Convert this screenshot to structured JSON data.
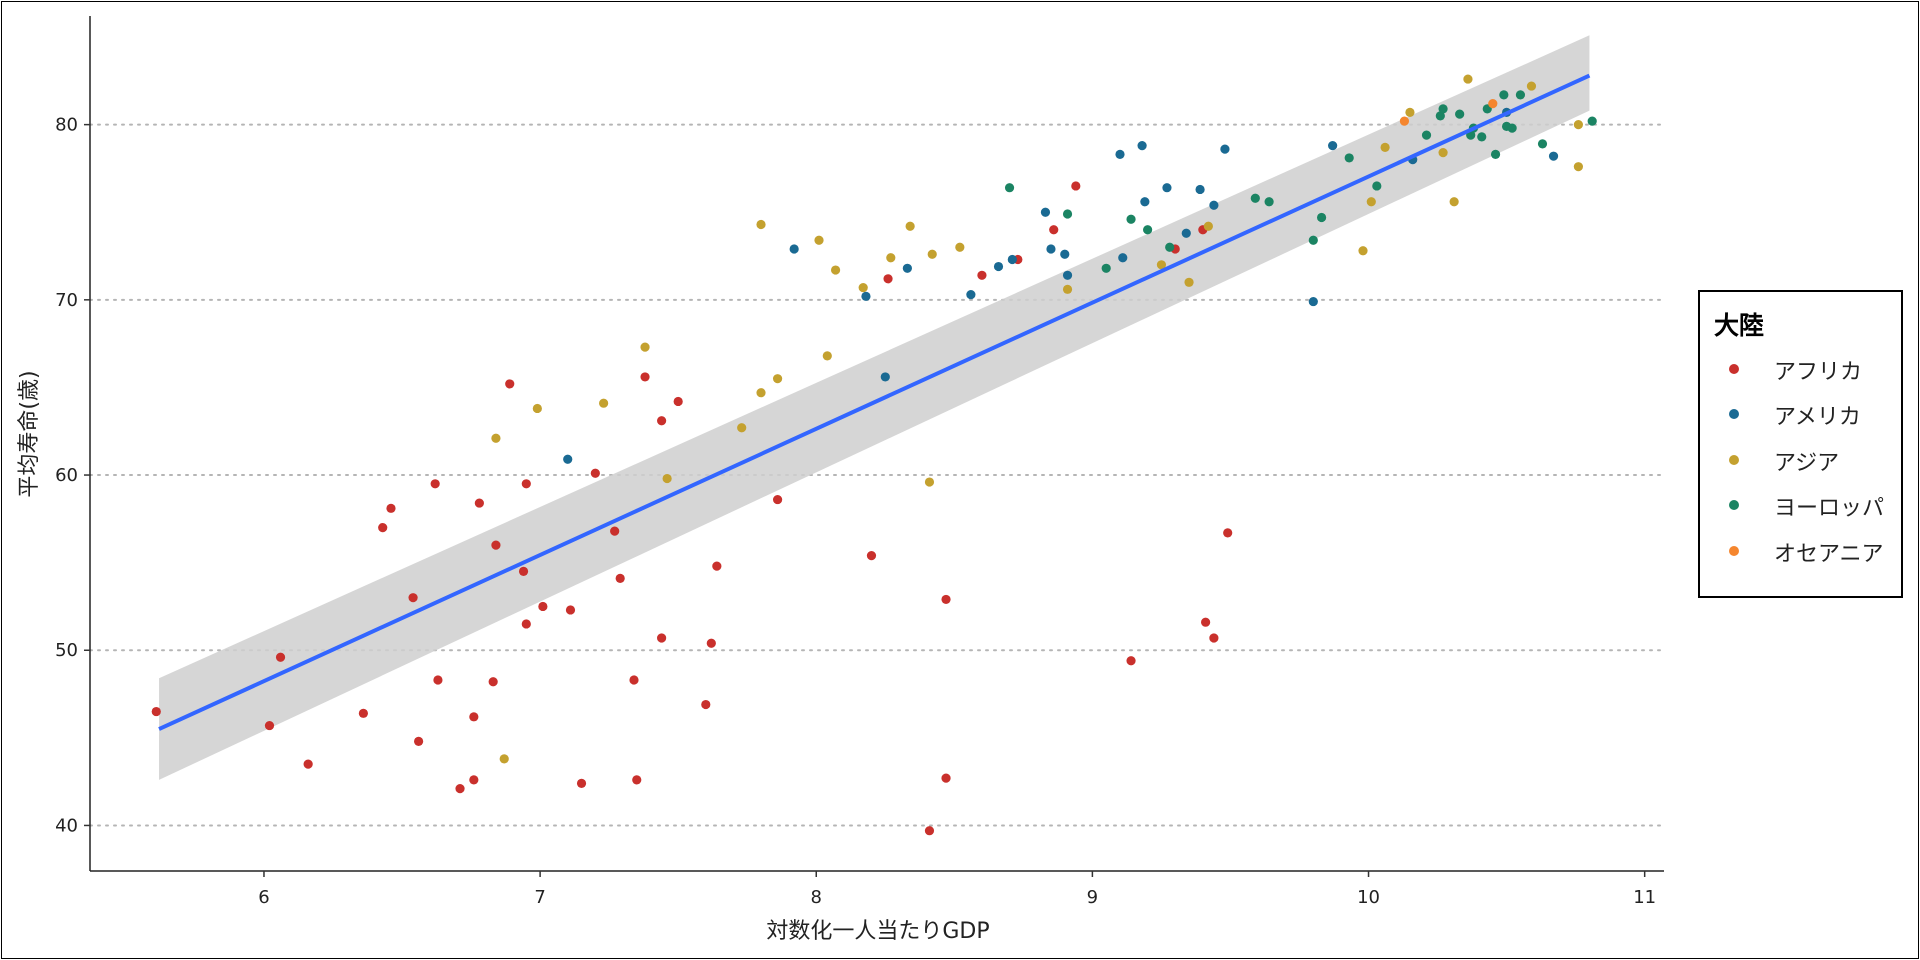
{
  "chart_data": {
    "type": "scatter",
    "xlabel": "対数化一人当たりGDP",
    "ylabel": "平均寿命(歳)",
    "xlim": [
      5.37,
      11.07
    ],
    "ylim": [
      37.4,
      86.2
    ],
    "xticks": [
      "6",
      "7",
      "8",
      "9",
      "10",
      "11"
    ],
    "yticks": [
      "40",
      "50",
      "60",
      "70",
      "80"
    ],
    "grid": "horizontal dotted",
    "legend": {
      "title": "大陸",
      "position": "right",
      "items": [
        {
          "label": "アフリカ",
          "color": "#C9302C"
        },
        {
          "label": "アメリカ",
          "color": "#1A6A93"
        },
        {
          "label": "アジア",
          "color": "#C4A12F"
        },
        {
          "label": "ヨーロッパ",
          "color": "#1B8463"
        },
        {
          "label": "オセアニア",
          "color": "#F5862E"
        }
      ]
    },
    "trend": {
      "type": "linear",
      "color": "#3366FF",
      "line": [
        [
          5.62,
          45.5
        ],
        [
          10.8,
          82.8
        ]
      ],
      "ci_lower": [
        [
          5.62,
          42.6
        ],
        [
          10.8,
          80.8
        ]
      ],
      "ci_upper": [
        [
          5.62,
          48.4
        ],
        [
          10.8,
          85.1
        ]
      ]
    },
    "series": [
      {
        "name": "アフリカ",
        "points": [
          [
            5.61,
            46.5
          ],
          [
            6.02,
            45.7
          ],
          [
            6.06,
            49.6
          ],
          [
            6.16,
            43.5
          ],
          [
            6.36,
            46.4
          ],
          [
            6.43,
            57.0
          ],
          [
            6.46,
            58.1
          ],
          [
            6.54,
            53.0
          ],
          [
            6.56,
            44.8
          ],
          [
            6.62,
            59.5
          ],
          [
            6.63,
            48.3
          ],
          [
            6.71,
            42.1
          ],
          [
            6.76,
            42.6
          ],
          [
            6.76,
            46.2
          ],
          [
            6.78,
            58.4
          ],
          [
            6.83,
            48.2
          ],
          [
            6.84,
            56.0
          ],
          [
            6.89,
            65.2
          ],
          [
            6.94,
            54.5
          ],
          [
            6.95,
            59.5
          ],
          [
            6.95,
            51.5
          ],
          [
            7.01,
            52.5
          ],
          [
            7.11,
            52.3
          ],
          [
            7.15,
            42.4
          ],
          [
            7.2,
            60.1
          ],
          [
            7.27,
            56.8
          ],
          [
            7.29,
            54.1
          ],
          [
            7.34,
            48.3
          ],
          [
            7.35,
            42.6
          ],
          [
            7.38,
            65.6
          ],
          [
            7.44,
            63.1
          ],
          [
            7.44,
            50.7
          ],
          [
            7.5,
            64.2
          ],
          [
            7.6,
            46.9
          ],
          [
            7.62,
            50.4
          ],
          [
            7.64,
            54.8
          ],
          [
            7.86,
            58.6
          ],
          [
            8.2,
            55.4
          ],
          [
            8.26,
            71.2
          ],
          [
            8.41,
            39.7
          ],
          [
            8.47,
            42.7
          ],
          [
            8.47,
            52.9
          ],
          [
            8.6,
            71.4
          ],
          [
            8.73,
            72.3
          ],
          [
            8.86,
            74.0
          ],
          [
            8.94,
            76.5
          ],
          [
            9.14,
            49.4
          ],
          [
            9.3,
            72.9
          ],
          [
            9.4,
            74.0
          ],
          [
            9.41,
            51.6
          ],
          [
            9.44,
            50.7
          ],
          [
            9.49,
            56.7
          ]
        ]
      },
      {
        "name": "アメリカ",
        "points": [
          [
            7.1,
            60.9
          ],
          [
            7.92,
            72.9
          ],
          [
            8.18,
            70.2
          ],
          [
            8.25,
            65.6
          ],
          [
            8.33,
            71.8
          ],
          [
            8.56,
            70.3
          ],
          [
            8.66,
            71.9
          ],
          [
            8.71,
            72.3
          ],
          [
            8.83,
            75.0
          ],
          [
            8.85,
            72.9
          ],
          [
            8.9,
            72.6
          ],
          [
            8.91,
            71.4
          ],
          [
            9.1,
            78.3
          ],
          [
            9.11,
            72.4
          ],
          [
            9.18,
            78.8
          ],
          [
            9.19,
            75.6
          ],
          [
            9.27,
            76.4
          ],
          [
            9.34,
            73.8
          ],
          [
            9.39,
            76.3
          ],
          [
            9.44,
            75.4
          ],
          [
            9.48,
            78.6
          ],
          [
            9.8,
            69.9
          ],
          [
            9.87,
            78.8
          ],
          [
            10.16,
            78.0
          ],
          [
            10.5,
            80.7
          ],
          [
            10.67,
            78.2
          ]
        ]
      },
      {
        "name": "アジア",
        "points": [
          [
            6.84,
            62.1
          ],
          [
            6.87,
            43.8
          ],
          [
            6.99,
            63.8
          ],
          [
            7.23,
            64.1
          ],
          [
            7.38,
            67.3
          ],
          [
            7.46,
            59.8
          ],
          [
            7.73,
            62.7
          ],
          [
            7.8,
            64.7
          ],
          [
            7.8,
            74.3
          ],
          [
            7.86,
            65.5
          ],
          [
            8.01,
            73.4
          ],
          [
            8.04,
            66.8
          ],
          [
            8.07,
            71.7
          ],
          [
            8.17,
            70.7
          ],
          [
            8.27,
            72.4
          ],
          [
            8.34,
            74.2
          ],
          [
            8.41,
            59.6
          ],
          [
            8.42,
            72.6
          ],
          [
            8.52,
            73.0
          ],
          [
            8.91,
            70.6
          ],
          [
            9.25,
            72.0
          ],
          [
            9.35,
            71.0
          ],
          [
            9.42,
            74.2
          ],
          [
            9.98,
            72.8
          ],
          [
            10.01,
            75.6
          ],
          [
            10.06,
            78.7
          ],
          [
            10.15,
            80.7
          ],
          [
            10.27,
            78.4
          ],
          [
            10.31,
            75.6
          ],
          [
            10.36,
            82.6
          ],
          [
            10.59,
            82.2
          ],
          [
            10.76,
            80.0
          ],
          [
            10.76,
            77.6
          ]
        ]
      },
      {
        "name": "ヨーロッパ",
        "points": [
          [
            8.7,
            76.4
          ],
          [
            8.91,
            74.9
          ],
          [
            9.05,
            71.8
          ],
          [
            9.14,
            74.6
          ],
          [
            9.2,
            74.0
          ],
          [
            9.28,
            73.0
          ],
          [
            9.59,
            75.8
          ],
          [
            9.64,
            75.6
          ],
          [
            9.8,
            73.4
          ],
          [
            9.83,
            74.7
          ],
          [
            9.93,
            78.1
          ],
          [
            10.03,
            76.5
          ],
          [
            10.21,
            79.4
          ],
          [
            10.26,
            80.5
          ],
          [
            10.27,
            80.9
          ],
          [
            10.33,
            80.6
          ],
          [
            10.37,
            79.4
          ],
          [
            10.38,
            79.8
          ],
          [
            10.41,
            79.3
          ],
          [
            10.43,
            80.9
          ],
          [
            10.46,
            78.3
          ],
          [
            10.49,
            81.7
          ],
          [
            10.5,
            79.9
          ],
          [
            10.52,
            79.8
          ],
          [
            10.55,
            81.7
          ],
          [
            10.63,
            78.9
          ],
          [
            10.81,
            80.2
          ]
        ]
      },
      {
        "name": "オセアニア",
        "points": [
          [
            10.13,
            80.2
          ],
          [
            10.45,
            81.2
          ]
        ]
      }
    ]
  }
}
